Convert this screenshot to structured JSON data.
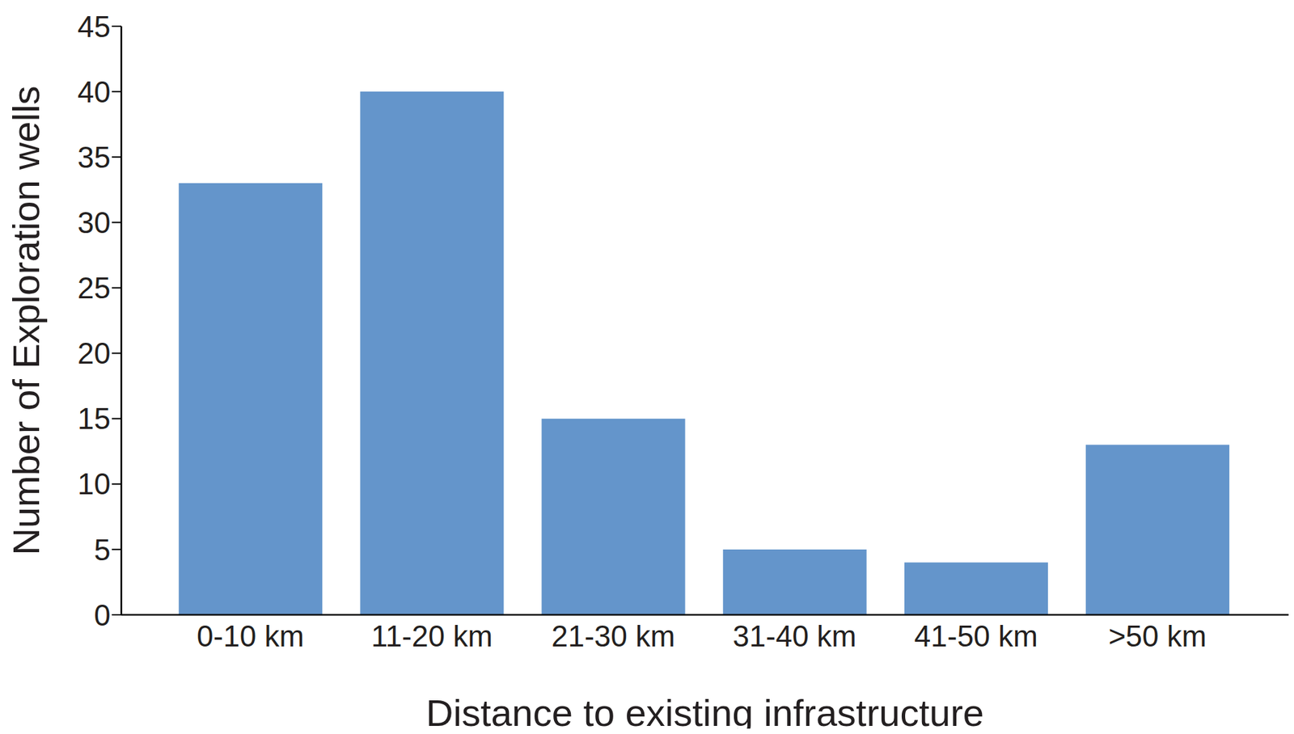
{
  "chart_data": {
    "type": "bar",
    "xlabel": "Distance to existing infrastructure",
    "ylabel": "Number of Exploration wells",
    "categories": [
      "0-10 km",
      "11-20 km",
      "21-30 km",
      "31-40 km",
      "41-50 km",
      ">50 km"
    ],
    "values": [
      33,
      40,
      15,
      5,
      4,
      13
    ],
    "color": "#6495cb",
    "ylim": [
      0,
      45
    ],
    "yticks": [
      0,
      5,
      10,
      15,
      20,
      25,
      30,
      35,
      40,
      45
    ],
    "grid": false
  }
}
